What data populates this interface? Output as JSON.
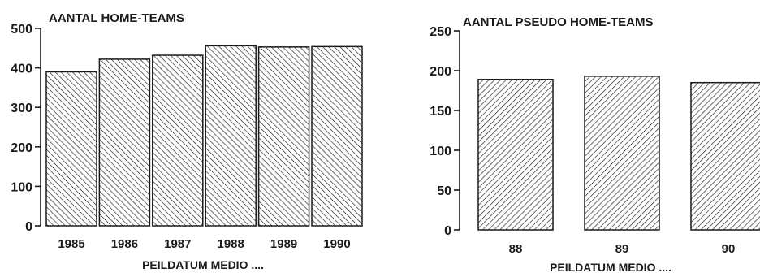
{
  "chart_data": [
    {
      "type": "bar",
      "title": "AANTAL HOME-TEAMS",
      "xlabel": "PEILDATUM MEDIO ....",
      "ylabel": "",
      "categories": [
        "1985",
        "1986",
        "1987",
        "1988",
        "1989",
        "1990"
      ],
      "values": [
        390,
        422,
        432,
        456,
        453,
        454
      ],
      "ylim": [
        0,
        500
      ],
      "yticks": [
        "0",
        "100",
        "200",
        "300",
        "400",
        "500"
      ],
      "hatch": "backslash",
      "grid": false
    },
    {
      "type": "bar",
      "title": "AANTAL PSEUDO HOME-TEAMS",
      "xlabel": "PEILDATUM MEDIO ....",
      "ylabel": "",
      "categories": [
        "88",
        "89",
        "90"
      ],
      "values": [
        189,
        193,
        185
      ],
      "ylim": [
        0,
        250
      ],
      "yticks": [
        "0",
        "50",
        "100",
        "150",
        "200",
        "250"
      ],
      "hatch": "slash",
      "grid": false
    }
  ],
  "colors": {
    "ink": "#1a1a1a",
    "paper": "#ffffff"
  }
}
